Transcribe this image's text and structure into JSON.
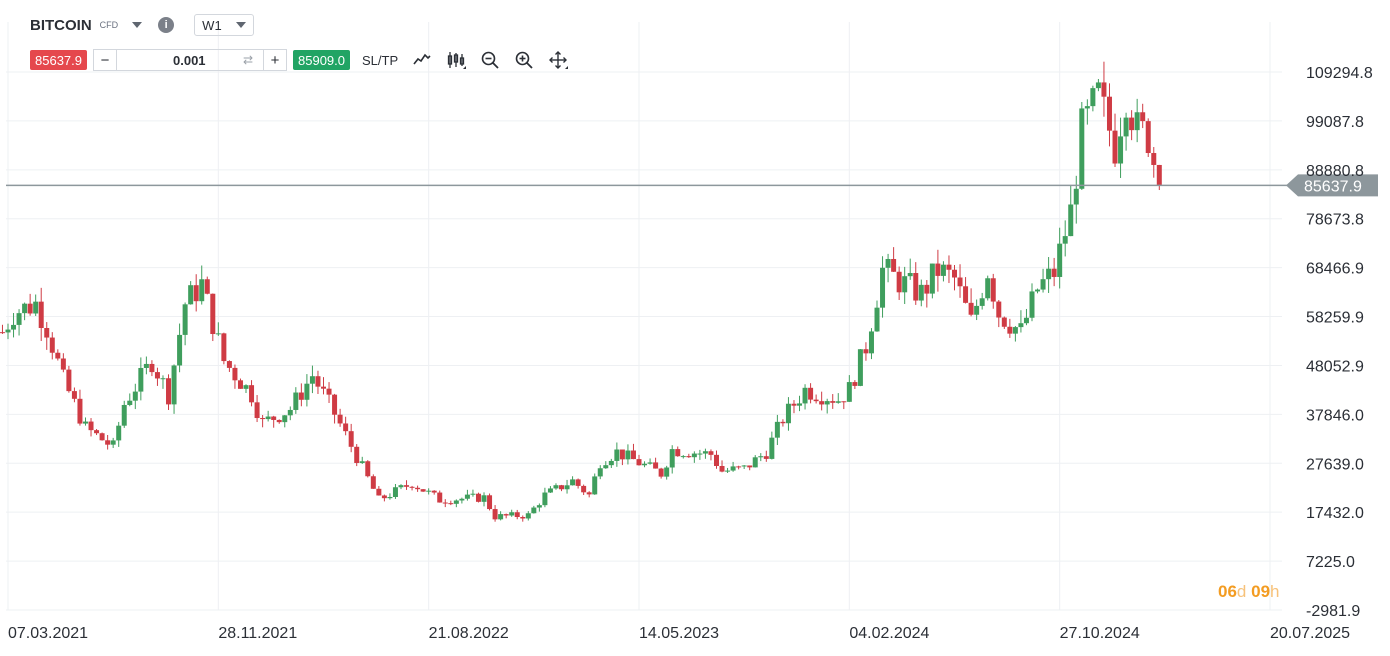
{
  "header": {
    "symbol": "BITCOIN",
    "symbol_type": "CFD",
    "timeframe": "W1"
  },
  "trade_bar": {
    "sell_price": "85637.9",
    "minus_label": "−",
    "quantity": "0.001",
    "plus_label": "+",
    "buy_price": "85909.0",
    "sltp_label": "SL/TP"
  },
  "tools": [
    "line-chart-icon",
    "candlestick-icon",
    "zoom-out-icon",
    "zoom-in-icon",
    "move-icon"
  ],
  "timer": {
    "days": "06",
    "days_unit": "d",
    "hours": "09",
    "hours_unit": "h"
  },
  "colors": {
    "up": "#3f9e5d",
    "down": "#cf3b44",
    "price_line": "#8d979c",
    "sell": "#e5484d",
    "buy": "#21a464",
    "timer": "#f39c22"
  },
  "chart_data": {
    "type": "candlestick",
    "title": "BITCOIN",
    "timeframe": "W1",
    "x_tick_labels": [
      "07.03.2021",
      "28.11.2021",
      "21.08.2022",
      "14.05.2023",
      "04.02.2024",
      "27.10.2024",
      "20.07.2025"
    ],
    "y_tick_labels": [
      "109294.8",
      "99087.8",
      "88880.8",
      "78673.8",
      "68466.9",
      "58259.9",
      "48052.9",
      "37846.0",
      "27639.0",
      "17432.0",
      "7225.0",
      "-2981.9"
    ],
    "y_range": [
      -2981.9,
      109294.8
    ],
    "x_range": [
      "2021-03-07",
      "2025-07-20"
    ],
    "current_price_label": "85637.9",
    "current_price": 85637.9,
    "grid": true,
    "anchors": [
      [
        "2021-02-28",
        55000
      ],
      [
        "2021-03-14",
        59000
      ],
      [
        "2021-04-11",
        61000
      ],
      [
        "2021-04-25",
        56000
      ],
      [
        "2021-05-16",
        45000
      ],
      [
        "2021-06-13",
        35000
      ],
      [
        "2021-07-18",
        31000
      ],
      [
        "2021-08-01",
        40000
      ],
      [
        "2021-09-05",
        49000
      ],
      [
        "2021-09-26",
        42000
      ],
      [
        "2021-10-17",
        61000
      ],
      [
        "2021-11-07",
        65000
      ],
      [
        "2021-12-05",
        49000
      ],
      [
        "2022-01-09",
        42000
      ],
      [
        "2022-01-23",
        36000
      ],
      [
        "2022-02-27",
        39000
      ],
      [
        "2022-03-27",
        46000
      ],
      [
        "2022-04-24",
        38000
      ],
      [
        "2022-05-22",
        29000
      ],
      [
        "2022-06-19",
        20000
      ],
      [
        "2022-07-31",
        23500
      ],
      [
        "2022-09-04",
        20000
      ],
      [
        "2022-10-30",
        20500
      ],
      [
        "2022-11-13",
        16500
      ],
      [
        "2022-12-25",
        16800
      ],
      [
        "2023-01-15",
        21000
      ],
      [
        "2023-02-19",
        24000
      ],
      [
        "2023-03-12",
        21000
      ],
      [
        "2023-03-26",
        28000
      ],
      [
        "2023-04-16",
        30000
      ],
      [
        "2023-06-11",
        25500
      ],
      [
        "2023-06-25",
        30500
      ],
      [
        "2023-08-13",
        29500
      ],
      [
        "2023-08-27",
        26000
      ],
      [
        "2023-09-24",
        26500
      ],
      [
        "2023-10-22",
        30000
      ],
      [
        "2023-11-12",
        37000
      ],
      [
        "2023-12-10",
        43000
      ],
      [
        "2024-01-21",
        41000
      ],
      [
        "2024-02-04",
        43000
      ],
      [
        "2024-02-25",
        52000
      ],
      [
        "2024-03-17",
        68000
      ],
      [
        "2024-04-14",
        65000
      ],
      [
        "2024-05-05",
        63000
      ],
      [
        "2024-05-26",
        68000
      ],
      [
        "2024-06-16",
        66000
      ],
      [
        "2024-07-07",
        57000
      ],
      [
        "2024-07-28",
        68000
      ],
      [
        "2024-08-11",
        59000
      ],
      [
        "2024-09-08",
        55000
      ],
      [
        "2024-09-29",
        64000
      ],
      [
        "2024-10-20",
        67500
      ],
      [
        "2024-11-10",
        80000
      ],
      [
        "2024-11-24",
        97000
      ],
      [
        "2024-12-15",
        104000
      ],
      [
        "2025-01-05",
        94000
      ],
      [
        "2025-01-19",
        105000
      ],
      [
        "2025-02-02",
        97000
      ],
      [
        "2025-02-16",
        96000
      ],
      [
        "2025-03-02",
        85637.9
      ]
    ]
  }
}
